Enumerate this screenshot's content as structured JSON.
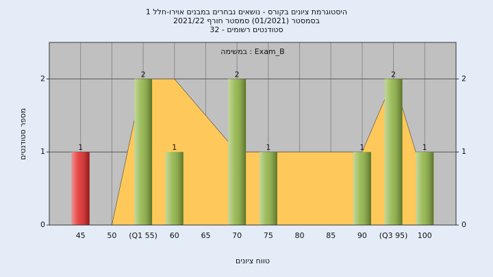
{
  "chart_data": {
    "type": "bar",
    "title_lines": [
      "היסטוגרמת ציונים בקורס - נושאים נבחרים במבנים אוירו-חלל 1",
      "בסמסטר  (01/2021)  סמסטר חורף 2021/22",
      "סטודנטים רשומים - 32"
    ],
    "subtitle": "במשימה : Exam_B",
    "x_label": "טווח ציונים",
    "y_label": "מספר סטודנטים",
    "x": [
      45,
      50,
      55,
      60,
      65,
      70,
      75,
      80,
      85,
      90,
      95,
      100
    ],
    "x_labels": [
      "45",
      "50",
      "(Q1 55)",
      "60",
      "65",
      "70",
      "75",
      "80",
      "85",
      "90",
      "(Q3 95)",
      "100"
    ],
    "values": [
      1,
      0,
      2,
      1,
      0,
      2,
      1,
      0,
      0,
      1,
      2,
      1
    ],
    "colors": [
      "#e02020",
      "#8ab03c",
      "#8ab03c",
      "#8ab03c",
      "#8ab03c",
      "#8ab03c",
      "#8ab03c",
      "#8ab03c",
      "#8ab03c",
      "#8ab03c",
      "#8ab03c",
      "#8ab03c"
    ],
    "area": {
      "color": "#ffc85a",
      "values": [
        null,
        0,
        2,
        2,
        1.5,
        1,
        1,
        1,
        1,
        1,
        2,
        0.6
      ]
    },
    "xlim": [
      40,
      105
    ],
    "ylim": [
      0,
      2.5
    ],
    "yticks": [
      0,
      1,
      2
    ],
    "grid": true
  }
}
